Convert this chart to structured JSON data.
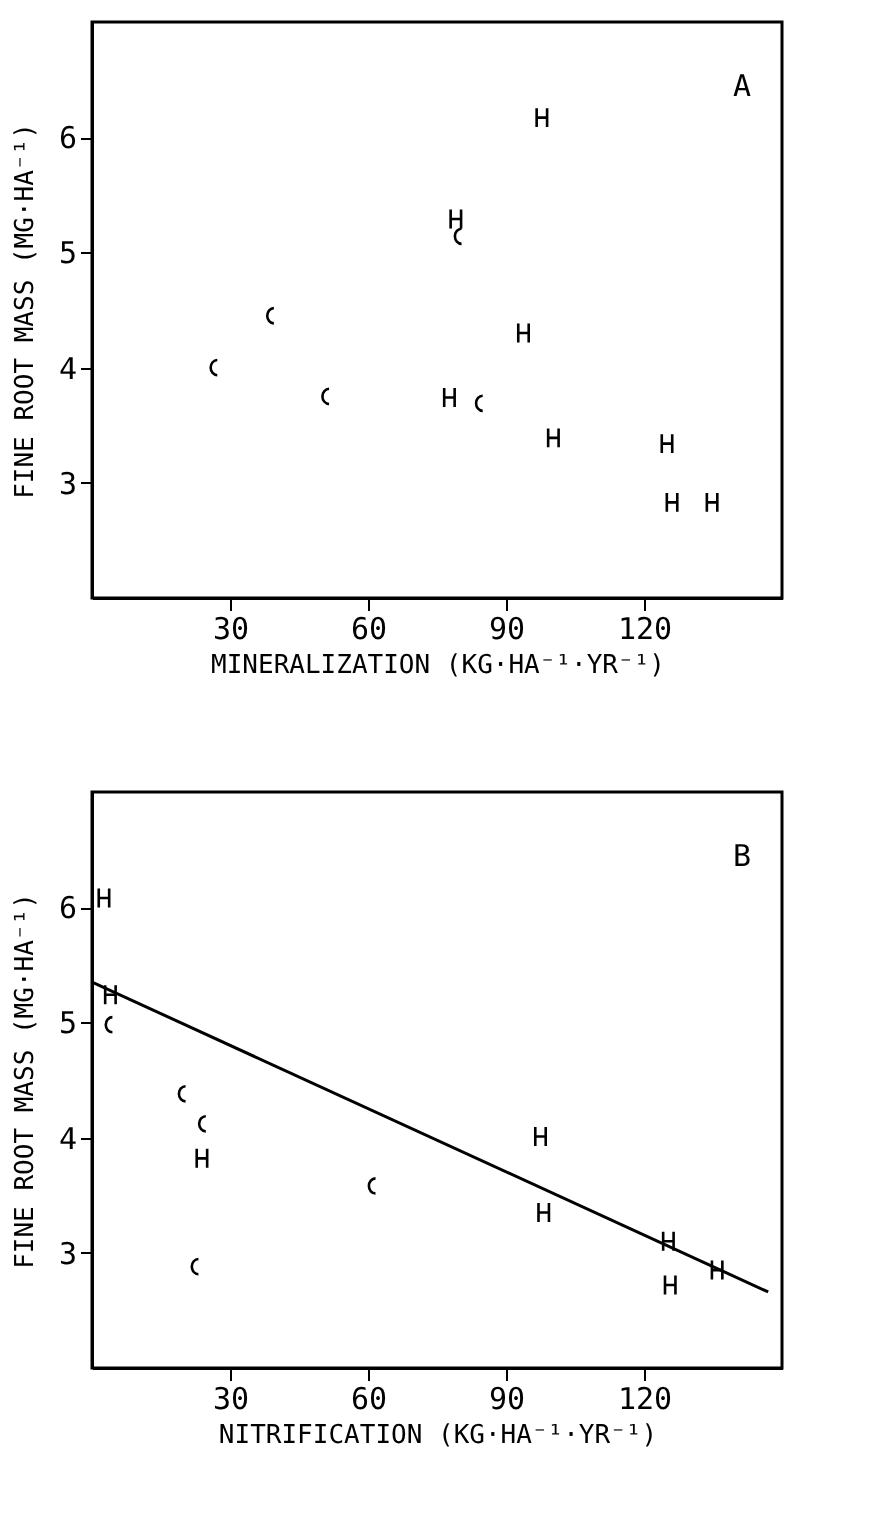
{
  "chart_data": [
    {
      "type": "scatter",
      "annotations": [
        "A"
      ],
      "xlabel": "MINERALIZATION (KG·HA⁻¹·YR⁻¹)",
      "ylabel": "FINE ROOT MASS (MG·HA⁻¹)",
      "xlim": [
        0,
        150
      ],
      "ylim": [
        2,
        7
      ],
      "xticks": [
        30,
        60,
        90,
        120
      ],
      "yticks": [
        3,
        4,
        5,
        6
      ],
      "series": [
        {
          "color": "#000000",
          "x": [
            26,
            38.3,
            50.3,
            83.7,
            79.1
          ],
          "values": [
            4.0,
            4.45,
            3.75,
            3.69,
            5.14
          ]
        },
        {
          "color": "#000000",
          "x": [
            77.7,
            79.1,
            97.8,
            93.8,
            100.3,
            125,
            126.1,
            134.8
          ],
          "values": [
            3.74,
            5.29,
            6.17,
            4.3,
            3.39,
            3.34,
            2.83,
            2.83
          ]
        }
      ]
    },
    {
      "type": "scatter",
      "annotations": [
        "B"
      ],
      "xlabel": "NITRIFICATION (KG·HA⁻¹·YR⁻¹)",
      "ylabel": "FINE ROOT MASS (MG·HA⁻¹)",
      "xlim": [
        0,
        150
      ],
      "ylim": [
        2,
        7
      ],
      "xticks": [
        30,
        60,
        90,
        120
      ],
      "yticks": [
        3,
        4,
        5,
        6
      ],
      "series": [
        {
          "color": "#000000",
          "x": [
            3.2,
            19.1,
            23.5,
            21.9,
            60.4
          ],
          "values": [
            4.98,
            4.38,
            4.12,
            2.88,
            3.58
          ]
        },
        {
          "color": "#000000",
          "x": [
            2.6,
            4,
            23.9,
            97.5,
            98.2,
            125.3,
            125.7,
            135.9
          ],
          "values": [
            6.08,
            5.24,
            3.82,
            4.01,
            3.35,
            3.1,
            2.72,
            2.85
          ]
        },
        {
          "type": "line",
          "color": "#000000",
          "x": [
            0,
            147
          ],
          "values": [
            5.35,
            2.66
          ]
        }
      ]
    }
  ]
}
